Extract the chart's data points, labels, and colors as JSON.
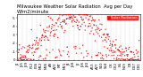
{
  "title": "Milwaukee Weather Solar Radiation  Avg per Day W/m2/minute",
  "title_fontsize": 3.8,
  "background_color": "#ffffff",
  "legend_label": "Solar Radiation",
  "legend_color": "#ff0000",
  "dot_color_primary": "#ff0000",
  "dot_color_secondary": "#000000",
  "ylim": [
    0.0,
    0.55
  ],
  "yticks": [
    0.0,
    0.1,
    0.2,
    0.3,
    0.4,
    0.5
  ],
  "ytick_labels": [
    "0",
    ".1",
    ".2",
    ".3",
    ".4",
    ".5"
  ],
  "grid_positions": [
    14,
    28,
    42,
    56,
    70,
    84,
    98,
    112,
    126,
    140,
    154,
    168,
    182,
    196,
    210,
    224,
    238,
    252,
    266,
    280,
    294,
    308,
    322,
    336,
    350,
    364
  ],
  "marker_size": 0.9,
  "tick_fontsize": 2.8,
  "n_days": 365,
  "seed": 17
}
